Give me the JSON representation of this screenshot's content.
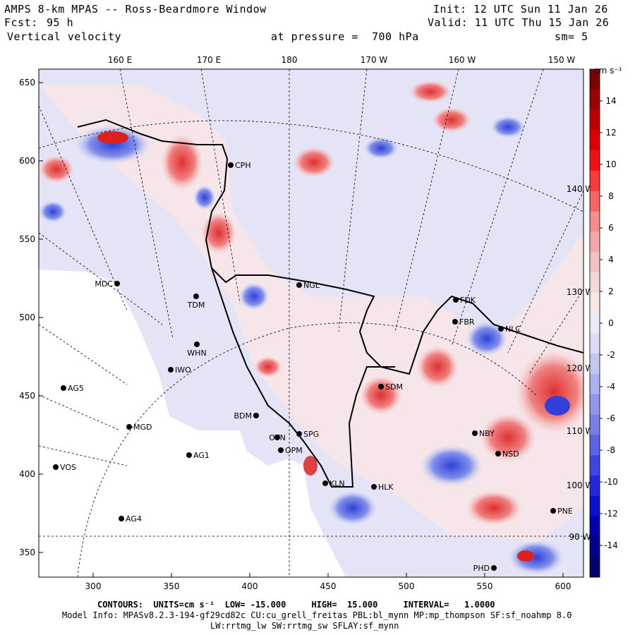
{
  "header": {
    "title": "AMPS 8-km MPAS -- Ross-Beardmore Window",
    "forecast_label": "Fcst:",
    "forecast_value": "95 h",
    "field": "Vertical velocity",
    "init": "Init: 12 UTC Sun 11 Jan 26",
    "valid": "Valid: 11 UTC Thu 15 Jan 26",
    "pressure": "at pressure =  700 hPa",
    "smoothing": "sm= 5"
  },
  "axes": {
    "x_ticks": [
      "300",
      "350",
      "400",
      "450",
      "500",
      "550",
      "600"
    ],
    "y_ticks": [
      "650",
      "600",
      "550",
      "500",
      "450",
      "400",
      "350"
    ],
    "lon_labels": [
      "160 E",
      "170 E",
      "180",
      "170 W",
      "160 W",
      "150 W"
    ],
    "edge_lon_labels": [
      "140 W",
      "130 W",
      "120 W",
      "110 W",
      "100 W",
      "90 W"
    ]
  },
  "colorbar": {
    "units": "cm s⁻¹",
    "ticks": [
      "14",
      "12",
      "10",
      "8",
      "6",
      "4",
      "2",
      "0",
      "-2",
      "-4",
      "-6",
      "-8",
      "-10",
      "-12",
      "-14"
    ],
    "colors": [
      "#7a0000",
      "#9c0000",
      "#be0000",
      "#de0000",
      "#f21010",
      "#fa3a3a",
      "#f86464",
      "#f78c8c",
      "#f5a8a8",
      "#f3c2c2",
      "#f4d8d8",
      "#f7e8e8",
      "#ece9f6",
      "#dcdaf4",
      "#c6c6f2",
      "#aab0f0",
      "#9198ec",
      "#7880e8",
      "#5c64e4",
      "#3d46e0",
      "#2028da",
      "#0810d2",
      "#0000b0",
      "#000090",
      "#000070"
    ]
  },
  "stations": [
    {
      "name": "CPH"
    },
    {
      "name": "NGL"
    },
    {
      "name": "MDC"
    },
    {
      "name": "TDM"
    },
    {
      "name": "WHN"
    },
    {
      "name": "IWO"
    },
    {
      "name": "AG5"
    },
    {
      "name": "MGD"
    },
    {
      "name": "AG1"
    },
    {
      "name": "VOS"
    },
    {
      "name": "AG4"
    },
    {
      "name": "BDM"
    },
    {
      "name": "SPG"
    },
    {
      "name": "OTN"
    },
    {
      "name": "OPM"
    },
    {
      "name": "KLN"
    },
    {
      "name": "HLK"
    },
    {
      "name": "SDM"
    },
    {
      "name": "NBY"
    },
    {
      "name": "NSD"
    },
    {
      "name": "PNE"
    },
    {
      "name": "PHD"
    },
    {
      "name": "FDK"
    },
    {
      "name": "FBR"
    },
    {
      "name": "NLC"
    }
  ],
  "footer": {
    "contours": "CONTOURS:  UNITS=cm s⁻¹  LOW= -15.000     HIGH=  15.000     INTERVAL=   1.0000",
    "model_info": "Model Info: MPASv8.2.3-194-gf29cd82c CU:cu_grell_freitas PBL:bl_mynn MP:mp_thompson SF:sf_noahmp 8.0",
    "physics": "LW:rrtmg_lw SW:rrtmg_sw SFLAY:sf_mynn"
  }
}
